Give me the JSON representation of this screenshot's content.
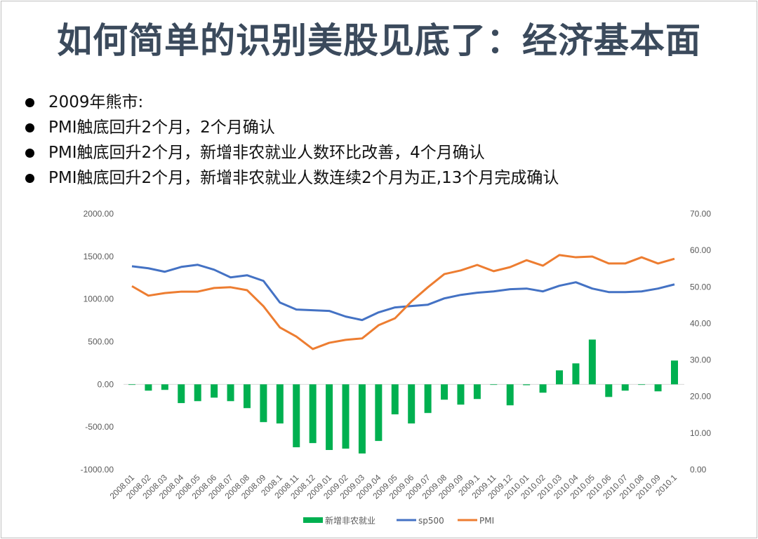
{
  "title": "如何简单的识别美股见底了：经济基本面",
  "bullets": [
    "2009年熊市:",
    "PMI触底回升2个月，2个月确认",
    "PMI触底回升2个月，新增非农就业人数环比改善，4个月确认",
    "PMI触底回升2个月，新增非农就业人数连续2个月为正,13个月完成确认"
  ],
  "chart_data": {
    "type": "bar+line",
    "title": "",
    "categories": [
      "2008.01",
      "2008.02",
      "2008.03",
      "2008.04",
      "2008.05",
      "2008.06",
      "2008.07",
      "2008.08",
      "2008.09",
      "2008.1",
      "2008.11",
      "2008.12",
      "2009.01",
      "2009.02",
      "2009.03",
      "2009.04",
      "2009.05",
      "2009.06",
      "2009.07",
      "2009.08",
      "2009.09",
      "2009.1",
      "2009.11",
      "2009.12",
      "2010.01",
      "2010.02",
      "2010.03",
      "2010.04",
      "2010.05",
      "2010.06",
      "2010.07",
      "2010.08",
      "2010.09",
      "2010.1"
    ],
    "y_left": {
      "range": [
        -1000,
        2000
      ],
      "ticks": [
        "2000.00",
        "1500.00",
        "1000.00",
        "500.00",
        "0.00",
        "-500.00",
        "-1000.00"
      ]
    },
    "y_right": {
      "range": [
        0,
        70
      ],
      "ticks": [
        "70.00",
        "60.00",
        "50.00",
        "40.00",
        "30.00",
        "20.00",
        "10.00",
        "0.00"
      ]
    },
    "grid": false,
    "legend_position": "bottom",
    "series": [
      {
        "name": "新增非农就业",
        "type": "bar",
        "axis": "left",
        "color": "#00b050",
        "values": [
          0,
          -74,
          -65,
          -220,
          -197,
          -156,
          -197,
          -279,
          -443,
          -459,
          -738,
          -689,
          -770,
          -754,
          -811,
          -664,
          -352,
          -459,
          -336,
          -180,
          -238,
          -172,
          -5,
          -246,
          -10,
          -98,
          164,
          246,
          525,
          -148,
          -74,
          0,
          -82,
          279
        ]
      },
      {
        "name": "sp500",
        "type": "line",
        "axis": "left",
        "color": "#4472c4",
        "values": [
          1385,
          1361,
          1320,
          1377,
          1402,
          1344,
          1254,
          1279,
          1213,
          959,
          877,
          869,
          861,
          795,
          754,
          844,
          902,
          918,
          934,
          1008,
          1049,
          1074,
          1090,
          1115,
          1123,
          1090,
          1156,
          1197,
          1123,
          1082,
          1082,
          1090,
          1123,
          1172
        ]
      },
      {
        "name": "PMI",
        "type": "line",
        "axis": "right",
        "color": "#ed7d31",
        "values": [
          50.2,
          47.6,
          48.3,
          48.7,
          48.7,
          49.7,
          49.9,
          49.1,
          44.7,
          38.9,
          36.4,
          33.0,
          34.7,
          35.5,
          35.9,
          39.5,
          41.4,
          46.0,
          49.9,
          53.5,
          54.5,
          56.0,
          54.3,
          55.4,
          57.3,
          55.8,
          58.7,
          58.1,
          58.3,
          56.4,
          56.4,
          58.1,
          56.4,
          57.7
        ]
      }
    ]
  }
}
